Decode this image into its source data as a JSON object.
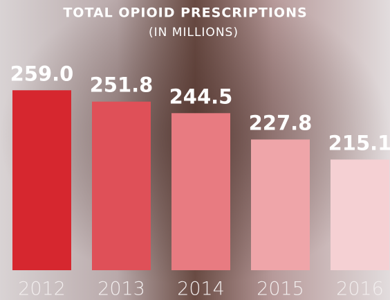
{
  "chart_data": {
    "type": "bar",
    "title": "TOTAL OPIOID PRESCRIPTIONS",
    "subtitle": "(IN MILLIONS)",
    "categories": [
      "2012",
      "2013",
      "2014",
      "2015",
      "2016"
    ],
    "values": [
      259.0,
      251.8,
      244.5,
      227.8,
      215.1
    ],
    "value_labels": [
      "259.0",
      "251.8",
      "244.5",
      "227.8",
      "215.1"
    ],
    "colors": [
      "#d6272f",
      "#df5058",
      "#e87b81",
      "#efa5a9",
      "#f5d0d3"
    ],
    "ylim": [
      145,
      260
    ]
  }
}
